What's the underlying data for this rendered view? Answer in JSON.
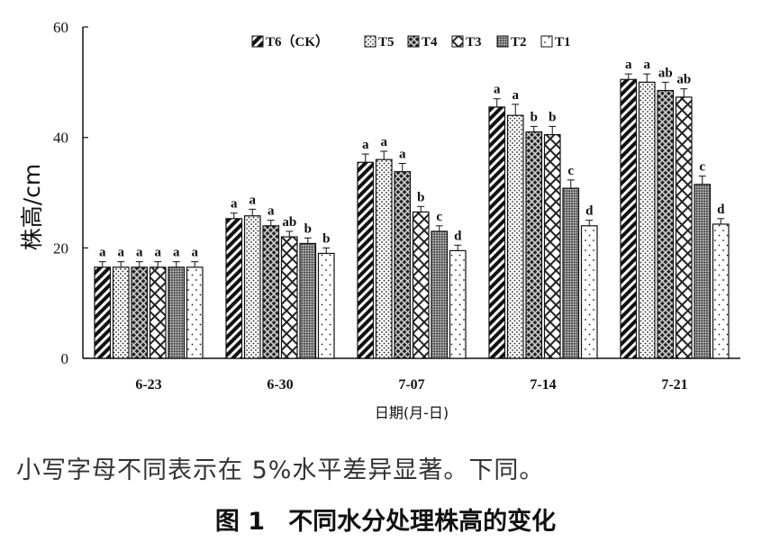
{
  "chart_data": {
    "type": "bar",
    "ylabel": "株高/cm",
    "xlabel": "日期(月-日)",
    "ylim": [
      0,
      60
    ],
    "yticks": [
      0,
      20,
      40,
      60
    ],
    "categories": [
      "6-23",
      "6-30",
      "7-07",
      "7-14",
      "7-21"
    ],
    "grid": false,
    "legend_position": "top",
    "series": [
      {
        "name": "T6（CK）",
        "pattern": "diag-stripe",
        "values": [
          16.5,
          25.3,
          35.5,
          45.5,
          50.5
        ],
        "errors": [
          1.0,
          1.0,
          1.5,
          1.5,
          1.0
        ],
        "letters": [
          "a",
          "a",
          "a",
          "a",
          "a"
        ]
      },
      {
        "name": "T5",
        "pattern": "dots",
        "values": [
          16.5,
          25.8,
          36.0,
          44.0,
          50.0
        ],
        "errors": [
          1.0,
          1.2,
          1.5,
          2.0,
          1.5
        ],
        "letters": [
          "a",
          "a",
          "a",
          "a",
          "a"
        ]
      },
      {
        "name": "T4",
        "pattern": "crosshatch-dark",
        "values": [
          16.5,
          24.0,
          33.8,
          41.0,
          48.5
        ],
        "errors": [
          1.0,
          1.0,
          1.5,
          1.0,
          1.5
        ],
        "letters": [
          "a",
          "a",
          "a",
          "b",
          "ab"
        ]
      },
      {
        "name": "T3",
        "pattern": "diamond-lattice",
        "values": [
          16.5,
          22.0,
          26.5,
          40.5,
          47.3
        ],
        "errors": [
          1.0,
          1.0,
          1.0,
          1.5,
          1.5
        ],
        "letters": [
          "a",
          "ab",
          "b",
          "b",
          "ab"
        ]
      },
      {
        "name": "T2",
        "pattern": "fine-check",
        "values": [
          16.5,
          20.8,
          23.0,
          30.8,
          31.5
        ],
        "errors": [
          1.0,
          1.0,
          1.0,
          1.5,
          1.5
        ],
        "letters": [
          "a",
          "b",
          "c",
          "c",
          "c"
        ]
      },
      {
        "name": "T1",
        "pattern": "sparse-dots",
        "values": [
          16.5,
          19.0,
          19.5,
          24.0,
          24.3
        ],
        "errors": [
          1.0,
          1.0,
          1.0,
          1.0,
          1.0
        ],
        "letters": [
          "a",
          "b",
          "d",
          "d",
          "d"
        ]
      }
    ]
  },
  "caption": {
    "note": "小写字母不同表示在 5%水平差异显著。下同。",
    "figure_number": "图 1",
    "figure_title": "不同水分处理株高的变化"
  }
}
